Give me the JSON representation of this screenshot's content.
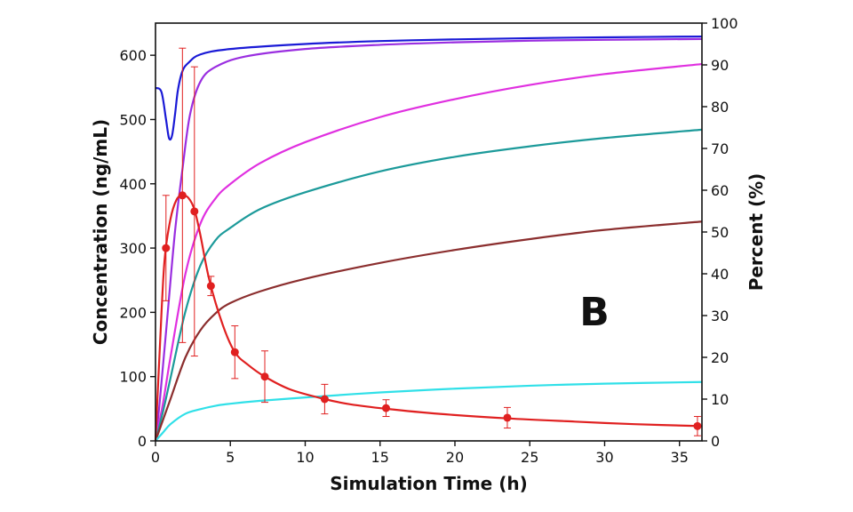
{
  "chart_data": {
    "type": "line",
    "panel_label": "B",
    "xlabel": "Simulation Time (h)",
    "ylabel_left": "Concentration (ng/mL)",
    "ylabel_right": "Percent (%)",
    "xlim": [
      0,
      36.5
    ],
    "ylim_left": [
      0,
      650
    ],
    "ylim_right": [
      0,
      100
    ],
    "x_ticks": [
      0,
      5,
      10,
      15,
      20,
      25,
      30,
      35
    ],
    "y_ticks_left": [
      0,
      100,
      200,
      300,
      400,
      500,
      600
    ],
    "y_ticks_right": [
      0,
      10,
      20,
      30,
      40,
      50,
      60,
      70,
      80,
      90,
      100
    ],
    "grid": false,
    "percent_series": [
      {
        "color": "#1a1ad6",
        "x": [
          0,
          0.4,
          0.7,
          0.9,
          1.1,
          1.3,
          1.5,
          1.8,
          2.2,
          3,
          5,
          10,
          15,
          20,
          25,
          30,
          36.5
        ],
        "y": [
          84.5,
          83.5,
          77,
          72.5,
          73,
          78,
          84,
          88.5,
          90.5,
          92.5,
          93.8,
          95,
          95.7,
          96.1,
          96.4,
          96.6,
          96.8
        ]
      },
      {
        "color": "#9a2ee0",
        "x": [
          0,
          0.3,
          0.8,
          1.3,
          1.8,
          2.3,
          3,
          4,
          6,
          10,
          15,
          20,
          25,
          30,
          36.5
        ],
        "y": [
          0,
          10,
          30,
          50,
          65,
          78,
          86,
          89.5,
          92,
          93.8,
          94.8,
          95.4,
          95.8,
          96,
          96.2
        ]
      },
      {
        "color": "#e030e0",
        "x": [
          0,
          0.5,
          1,
          2,
          3,
          4,
          5,
          7,
          10,
          15,
          20,
          25,
          30,
          36.5
        ],
        "y": [
          0,
          9,
          20,
          40,
          52,
          58,
          61.5,
          66.5,
          71.5,
          77.5,
          81.8,
          85.2,
          87.8,
          90.2
        ]
      },
      {
        "color": "#1c9a9a",
        "x": [
          0,
          0.5,
          1,
          2,
          3,
          4,
          5,
          7,
          10,
          15,
          20,
          25,
          30,
          36.5
        ],
        "y": [
          0,
          7,
          15,
          31,
          42,
          48,
          51,
          55.5,
          59.5,
          64.5,
          68,
          70.5,
          72.5,
          74.5
        ]
      },
      {
        "color": "#8b2e2e",
        "x": [
          0,
          0.5,
          1,
          2,
          3,
          4,
          5,
          7,
          10,
          15,
          20,
          25,
          30,
          36.5
        ],
        "y": [
          0,
          5,
          10,
          20,
          26.5,
          30.5,
          33,
          35.8,
          38.8,
          42.6,
          45.7,
          48.3,
          50.5,
          52.5
        ]
      },
      {
        "color": "#30e0e8",
        "x": [
          0,
          0.5,
          1,
          2,
          3,
          4,
          5,
          7,
          10,
          15,
          20,
          25,
          30,
          36.5
        ],
        "y": [
          0,
          2,
          4,
          6.5,
          7.6,
          8.4,
          8.9,
          9.6,
          10.4,
          11.6,
          12.5,
          13.2,
          13.7,
          14.1
        ]
      }
    ],
    "concentration_series": {
      "color": "#e02020",
      "curve_x": [
        0,
        0.3,
        0.6,
        1,
        1.4,
        1.8,
        2.2,
        2.6,
        3,
        3.6,
        4.5,
        5.3,
        6.2,
        7.3,
        9,
        11.3,
        13,
        15.4,
        19,
        23.5,
        28,
        32,
        36.5
      ],
      "curve_y": [
        0,
        150,
        280,
        345,
        375,
        382,
        378,
        360,
        320,
        250,
        180,
        138,
        118,
        100,
        80,
        65,
        57,
        50,
        42,
        35,
        30,
        26,
        23
      ],
      "points": [
        {
          "x": 0.7,
          "y": 300,
          "err": 82
        },
        {
          "x": 1.8,
          "y": 382,
          "err": 229
        },
        {
          "x": 2.6,
          "y": 357,
          "err": 225
        },
        {
          "x": 3.7,
          "y": 241,
          "err": 15
        },
        {
          "x": 5.3,
          "y": 138,
          "err": 41
        },
        {
          "x": 7.3,
          "y": 100,
          "err": 40
        },
        {
          "x": 11.3,
          "y": 65,
          "err": 23
        },
        {
          "x": 15.4,
          "y": 51,
          "err": 13
        },
        {
          "x": 23.5,
          "y": 36,
          "err": 16
        },
        {
          "x": 36.2,
          "y": 23,
          "err": 15
        }
      ]
    }
  }
}
